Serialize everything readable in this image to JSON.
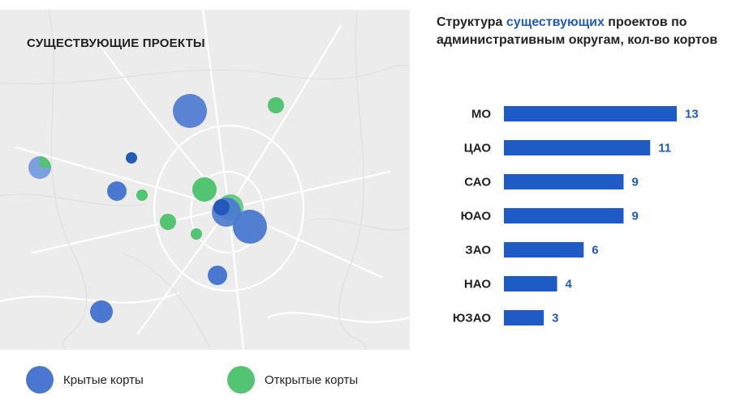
{
  "map": {
    "title": "СУЩЕСТВУЮЩИЕ ПРОЕКТЫ"
  },
  "legend": {
    "covered_label": "Крытые корты",
    "open_label": "Открытые корты"
  },
  "colors": {
    "covered": "#4a78d1",
    "covered_dark": "#2359b8",
    "open": "#52c472",
    "bar": "#1f5bc4",
    "value_text": "#1f5bc4",
    "map_bg": "#ececec"
  },
  "chart_title": {
    "part1": "Структура ",
    "highlight": "существующих",
    "part2": " проектов по административным округам, кол-во кортов"
  },
  "chart_data": {
    "type": "bar",
    "orientation": "horizontal",
    "categories": [
      "МО",
      "ЦАО",
      "САО",
      "ЮАО",
      "ЗАО",
      "НАО",
      "ЮЗАО"
    ],
    "values": [
      13,
      11,
      9,
      9,
      6,
      4,
      3
    ],
    "xlim": [
      0,
      13
    ],
    "grid": false
  }
}
